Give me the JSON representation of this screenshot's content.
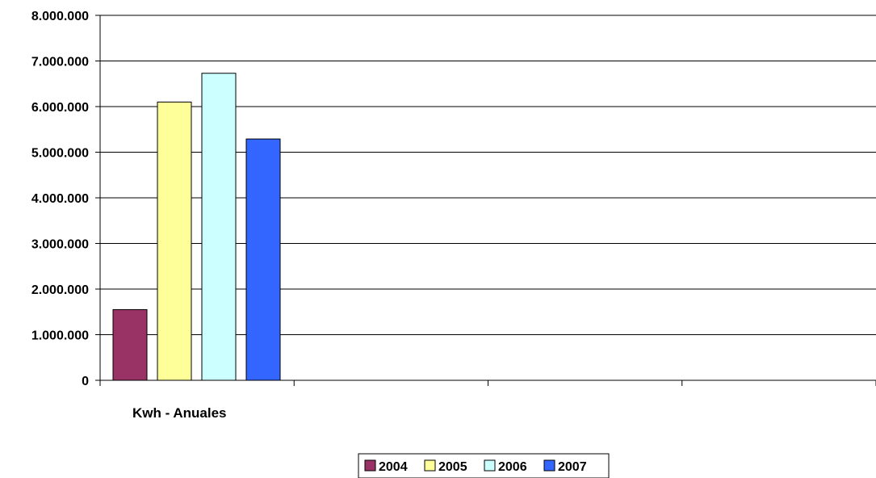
{
  "chart_data": {
    "type": "bar",
    "title": "",
    "xlabel": "",
    "ylabel": "",
    "categories": [
      "Kwh - Anuales"
    ],
    "series": [
      {
        "name": "2004",
        "values": [
          1550000
        ],
        "color": "#993366"
      },
      {
        "name": "2005",
        "values": [
          6100000
        ],
        "color": "#FFFF99"
      },
      {
        "name": "2006",
        "values": [
          6730000
        ],
        "color": "#CCFFFF"
      },
      {
        "name": "2007",
        "values": [
          5290000
        ],
        "color": "#3366FF"
      }
    ],
    "ylim": [
      0,
      8000000
    ],
    "yticks": [
      "0",
      "1.000.000",
      "2.000.000",
      "3.000.000",
      "4.000.000",
      "5.000.000",
      "6.000.000",
      "7.000.000",
      "8.000.000"
    ],
    "grid": true,
    "legend": "bottom"
  }
}
